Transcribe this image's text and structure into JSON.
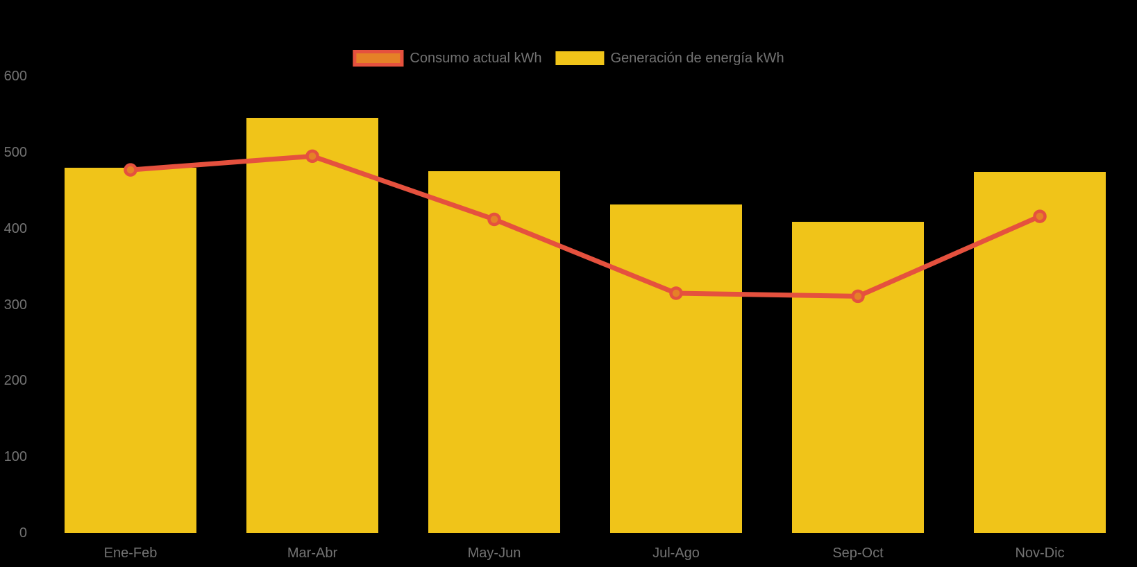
{
  "page": {
    "background_color": "#000000",
    "text_color": "#737373"
  },
  "legend": {
    "items": [
      {
        "label": "Consumo actual kWh",
        "swatch_fill": "#E58127",
        "swatch_border": "#E5513E",
        "series_type": "line"
      },
      {
        "label": "Generación de energía kWh",
        "swatch_fill": "#F0C419",
        "swatch_border": null,
        "series_type": "bar"
      }
    ]
  },
  "chart_data": {
    "type": "bar",
    "title": "",
    "xlabel": "",
    "ylabel": "",
    "categories": [
      "Ene-Feb",
      "Mar-Abr",
      "May-Jun",
      "Jul-Ago",
      "Sep-Oct",
      "Nov-Dic"
    ],
    "series": [
      {
        "name": "Generación de energía kWh",
        "type": "bar",
        "color": "#F0C419",
        "values": [
          480,
          545,
          475,
          432,
          409,
          474
        ]
      },
      {
        "name": "Consumo actual kWh",
        "type": "line",
        "color": "#E5513E",
        "marker_fill": "#E58127",
        "values": [
          477,
          495,
          412,
          315,
          311,
          416
        ]
      }
    ],
    "ylim": [
      0,
      600
    ],
    "y_ticks": [
      0,
      100,
      200,
      300,
      400,
      500,
      600
    ],
    "grid": false,
    "legend_position": "top",
    "axis_text_color": "#737373"
  }
}
